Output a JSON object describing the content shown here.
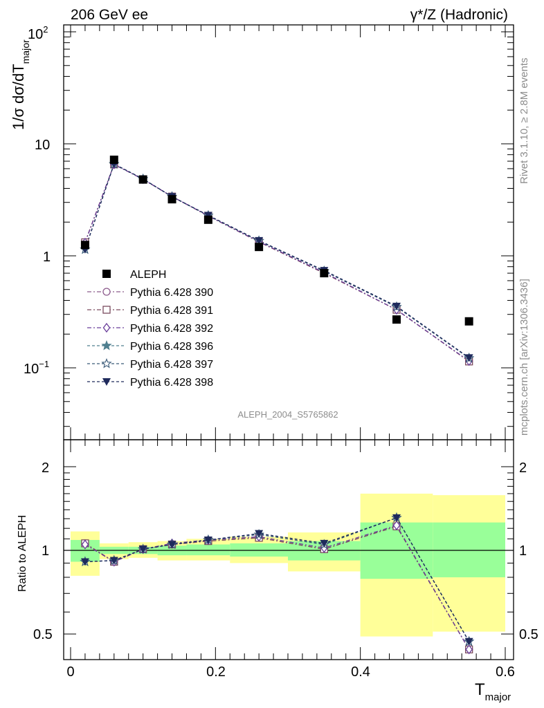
{
  "header": {
    "left": "206 GeV ee",
    "right": "γ*/Z (Hadronic)"
  },
  "side": {
    "rivet": "Rivet 3.1.10, ≥ 2.8M events",
    "mcplots": "mcplots.cern.ch [arXiv:1306.3436]"
  },
  "watermark": "ALEPH_2004_S5765862",
  "axes": {
    "ylabel_main": "1/σ  dσ/dT",
    "ylabel_main_sub": "major",
    "ylabel_ratio": "Ratio to ALEPH",
    "xlabel": "T",
    "xlabel_sub": "major",
    "main_ticks": [
      "10",
      "2",
      "10",
      "1",
      "10",
      "−1"
    ],
    "ratio_ticks": [
      "2",
      "1",
      "0.5"
    ],
    "x_ticks": [
      "0",
      "0.2",
      "0.4",
      "0.6"
    ]
  },
  "colors": {
    "yellow_band": "#ffff99",
    "green_band": "#99ff99",
    "s390": "#8c5a8c",
    "s391": "#7a4a5e",
    "s392": "#6a3d9a",
    "s396": "#4f7f8f",
    "s397": "#3a5a78",
    "s398": "#1f2a5c"
  },
  "chart_data": [
    {
      "type": "scatter",
      "panel": "main",
      "x_range": [
        0,
        0.6
      ],
      "y_range": [
        0.025,
        120
      ],
      "y_scale": "log",
      "legend_position": "middle-left",
      "series": [
        {
          "name": "ALEPH",
          "marker": "square",
          "x": [
            0.02,
            0.06,
            0.1,
            0.14,
            0.19,
            0.26,
            0.35,
            0.45,
            0.55
          ],
          "y": [
            1.25,
            7.2,
            4.8,
            3.2,
            2.1,
            1.2,
            0.7,
            0.27,
            0.26
          ]
        },
        {
          "name": "Pythia 6.428 390",
          "marker": "circle-open",
          "x": [
            0.02,
            0.06,
            0.1,
            0.14,
            0.19,
            0.26,
            0.35,
            0.45,
            0.55
          ],
          "y": [
            1.32,
            6.55,
            4.82,
            3.38,
            2.27,
            1.33,
            0.7,
            0.33,
            0.114
          ]
        },
        {
          "name": "Pythia 6.428 391",
          "marker": "square-open",
          "x": [
            0.02,
            0.06,
            0.1,
            0.14,
            0.19,
            0.26,
            0.35,
            0.45,
            0.55
          ],
          "y": [
            1.32,
            6.55,
            4.82,
            3.38,
            2.27,
            1.33,
            0.7,
            0.33,
            0.114
          ]
        },
        {
          "name": "Pythia 6.428 392",
          "marker": "diamond-open",
          "x": [
            0.02,
            0.06,
            0.1,
            0.14,
            0.19,
            0.26,
            0.35,
            0.45,
            0.55
          ],
          "y": [
            1.31,
            6.55,
            4.83,
            3.39,
            2.28,
            1.34,
            0.71,
            0.33,
            0.115
          ]
        },
        {
          "name": "Pythia 6.428 396",
          "marker": "star-filled",
          "x": [
            0.02,
            0.06,
            0.1,
            0.14,
            0.19,
            0.26,
            0.35,
            0.45,
            0.55
          ],
          "y": [
            1.14,
            6.6,
            4.85,
            3.37,
            2.29,
            1.36,
            0.73,
            0.35,
            0.122
          ]
        },
        {
          "name": "Pythia 6.428 397",
          "marker": "star-open",
          "x": [
            0.02,
            0.06,
            0.1,
            0.14,
            0.19,
            0.26,
            0.35,
            0.45,
            0.55
          ],
          "y": [
            1.14,
            6.6,
            4.85,
            3.37,
            2.29,
            1.36,
            0.73,
            0.35,
            0.122
          ]
        },
        {
          "name": "Pythia 6.428 398",
          "marker": "triangle-down",
          "x": [
            0.02,
            0.06,
            0.1,
            0.14,
            0.19,
            0.26,
            0.35,
            0.45,
            0.55
          ],
          "y": [
            1.14,
            6.6,
            4.86,
            3.38,
            2.3,
            1.37,
            0.74,
            0.355,
            0.123
          ]
        }
      ]
    },
    {
      "type": "line",
      "panel": "ratio",
      "x_range": [
        0,
        0.6
      ],
      "y_range": [
        0.42,
        2.3
      ],
      "y_scale": "log",
      "bands": {
        "x_edges": [
          0,
          0.04,
          0.08,
          0.12,
          0.16,
          0.22,
          0.3,
          0.4,
          0.5,
          0.6
        ],
        "yellow_lo": [
          0.81,
          0.93,
          0.94,
          0.92,
          0.92,
          0.9,
          0.84,
          0.49,
          0.51
        ],
        "yellow_hi": [
          1.17,
          1.06,
          1.07,
          1.08,
          1.1,
          1.12,
          1.16,
          1.6,
          1.58
        ],
        "green_lo": [
          0.91,
          0.97,
          0.97,
          0.96,
          0.96,
          0.95,
          0.92,
          0.79,
          0.8
        ],
        "green_hi": [
          1.09,
          1.03,
          1.03,
          1.04,
          1.05,
          1.06,
          1.08,
          1.26,
          1.26
        ]
      },
      "series": [
        {
          "name": "Pythia 6.428 390",
          "x": [
            0.02,
            0.06,
            0.1,
            0.14,
            0.19,
            0.26,
            0.35,
            0.45,
            0.55
          ],
          "y": [
            1.06,
            0.91,
            1.01,
            1.05,
            1.08,
            1.11,
            1.01,
            1.22,
            0.44
          ]
        },
        {
          "name": "Pythia 6.428 391",
          "x": [
            0.02,
            0.06,
            0.1,
            0.14,
            0.19,
            0.26,
            0.35,
            0.45,
            0.55
          ],
          "y": [
            1.06,
            0.91,
            1.01,
            1.05,
            1.08,
            1.11,
            1.01,
            1.22,
            0.44
          ]
        },
        {
          "name": "Pythia 6.428 392",
          "x": [
            0.02,
            0.06,
            0.1,
            0.14,
            0.19,
            0.26,
            0.35,
            0.45,
            0.55
          ],
          "y": [
            1.05,
            0.91,
            1.01,
            1.06,
            1.09,
            1.12,
            1.02,
            1.23,
            0.44
          ]
        },
        {
          "name": "Pythia 6.428 396",
          "x": [
            0.02,
            0.06,
            0.1,
            0.14,
            0.19,
            0.26,
            0.35,
            0.45,
            0.55
          ],
          "y": [
            0.91,
            0.92,
            1.01,
            1.05,
            1.09,
            1.14,
            1.05,
            1.31,
            0.47
          ]
        },
        {
          "name": "Pythia 6.428 397",
          "x": [
            0.02,
            0.06,
            0.1,
            0.14,
            0.19,
            0.26,
            0.35,
            0.45,
            0.55
          ],
          "y": [
            0.91,
            0.92,
            1.01,
            1.05,
            1.09,
            1.14,
            1.05,
            1.31,
            0.47
          ]
        },
        {
          "name": "Pythia 6.428 398",
          "x": [
            0.02,
            0.06,
            0.1,
            0.14,
            0.19,
            0.26,
            0.35,
            0.45,
            0.55
          ],
          "y": [
            0.91,
            0.92,
            1.01,
            1.05,
            1.09,
            1.15,
            1.06,
            1.31,
            0.47
          ]
        }
      ]
    }
  ]
}
